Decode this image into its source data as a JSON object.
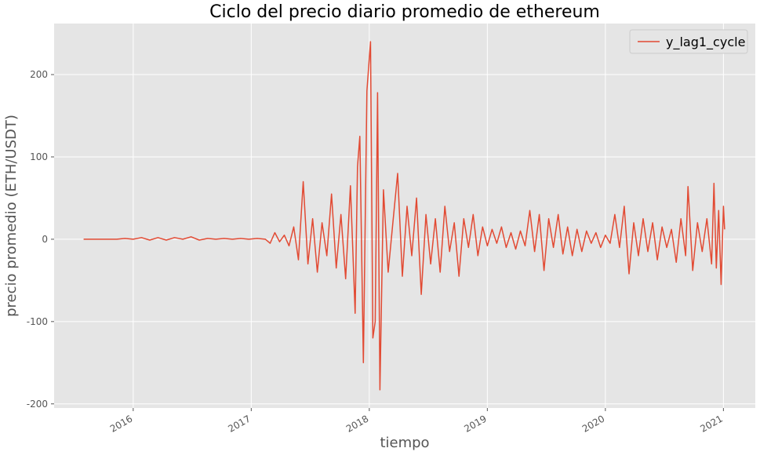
{
  "chart_data": {
    "type": "line",
    "title": "Ciclo del precio diario promedio de ethereum",
    "xlabel": "tiempo",
    "ylabel": "precio promedio (ETH/USDT)",
    "x": [
      2015.58,
      2015.65,
      2015.72,
      2015.79,
      2015.86,
      2015.93,
      2016.0,
      2016.07,
      2016.14,
      2016.21,
      2016.28,
      2016.35,
      2016.42,
      2016.49,
      2016.56,
      2016.63,
      2016.7,
      2016.77,
      2016.84,
      2016.91,
      2016.98,
      2017.05,
      2017.12,
      2017.16,
      2017.2,
      2017.24,
      2017.28,
      2017.32,
      2017.36,
      2017.4,
      2017.44,
      2017.48,
      2017.52,
      2017.56,
      2017.6,
      2017.64,
      2017.68,
      2017.72,
      2017.76,
      2017.8,
      2017.84,
      2017.88,
      2017.9,
      2017.92,
      2017.95,
      2017.98,
      2018.01,
      2018.03,
      2018.05,
      2018.07,
      2018.09,
      2018.12,
      2018.16,
      2018.2,
      2018.24,
      2018.28,
      2018.32,
      2018.36,
      2018.4,
      2018.44,
      2018.48,
      2018.52,
      2018.56,
      2018.6,
      2018.64,
      2018.68,
      2018.72,
      2018.76,
      2018.8,
      2018.84,
      2018.88,
      2018.92,
      2018.96,
      2019.0,
      2019.04,
      2019.08,
      2019.12,
      2019.16,
      2019.2,
      2019.24,
      2019.28,
      2019.32,
      2019.36,
      2019.4,
      2019.44,
      2019.48,
      2019.52,
      2019.56,
      2019.6,
      2019.64,
      2019.68,
      2019.72,
      2019.76,
      2019.8,
      2019.84,
      2019.88,
      2019.92,
      2019.96,
      2020.0,
      2020.04,
      2020.08,
      2020.12,
      2020.16,
      2020.2,
      2020.24,
      2020.28,
      2020.32,
      2020.36,
      2020.4,
      2020.44,
      2020.48,
      2020.52,
      2020.56,
      2020.6,
      2020.64,
      2020.68,
      2020.7,
      2020.74,
      2020.78,
      2020.82,
      2020.86,
      2020.9,
      2020.92,
      2020.94,
      2020.96,
      2020.98,
      2021.0,
      2021.01
    ],
    "series": [
      {
        "name": "y_lag1_cycle",
        "color": "#e24a33",
        "values": [
          0,
          0,
          0,
          0,
          0,
          1,
          0,
          2,
          -1,
          2,
          -1,
          2,
          0,
          3,
          -1,
          1,
          0,
          1,
          0,
          1,
          0,
          1,
          0,
          -5,
          8,
          -3,
          5,
          -8,
          15,
          -25,
          70,
          -30,
          25,
          -40,
          20,
          -20,
          55,
          -35,
          30,
          -48,
          65,
          -90,
          88,
          125,
          -150,
          180,
          240,
          -120,
          -100,
          178,
          -183,
          60,
          -40,
          20,
          80,
          -45,
          40,
          -20,
          50,
          -67,
          30,
          -30,
          25,
          -40,
          40,
          -15,
          20,
          -45,
          25,
          -10,
          30,
          -20,
          15,
          -8,
          12,
          -5,
          15,
          -10,
          8,
          -12,
          10,
          -8,
          35,
          -15,
          30,
          -38,
          25,
          -10,
          30,
          -18,
          15,
          -20,
          12,
          -15,
          10,
          -5,
          8,
          -10,
          5,
          -5,
          30,
          -10,
          40,
          -42,
          20,
          -20,
          25,
          -15,
          20,
          -25,
          15,
          -10,
          12,
          -28,
          25,
          -20,
          64,
          -38,
          20,
          -15,
          25,
          -30,
          68,
          -35,
          35,
          -55,
          40,
          12
        ]
      }
    ],
    "xlim": [
      2015.33,
      2021.27
    ],
    "xticks": [
      2016,
      2017,
      2018,
      2019,
      2020,
      2021
    ],
    "ylim": [
      -205,
      262
    ],
    "yticks": [
      -200,
      -100,
      0,
      100,
      200
    ],
    "grid": true,
    "legend": "upper right"
  }
}
